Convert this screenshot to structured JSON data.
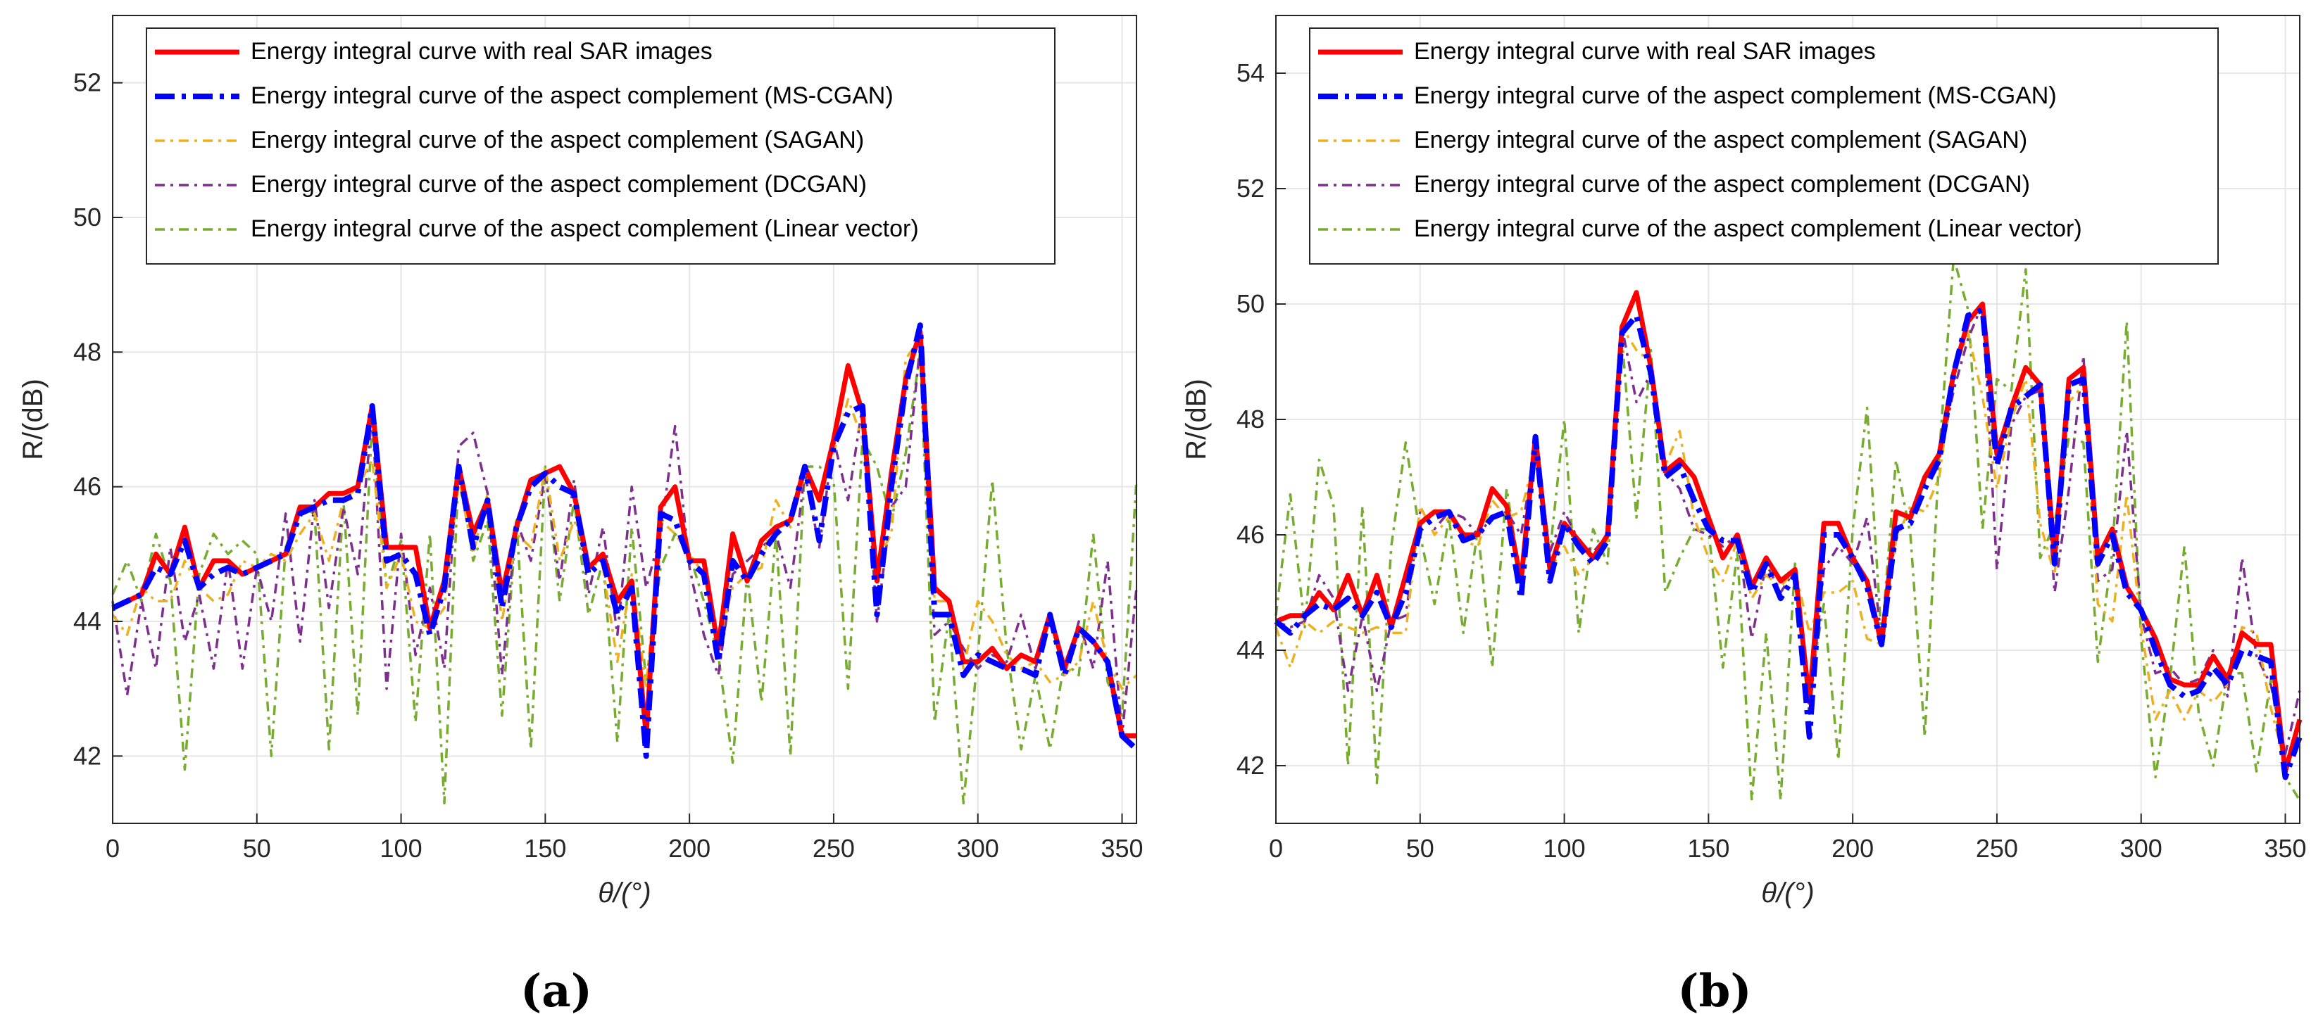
{
  "colors": {
    "real": "#ff0000",
    "mscgan": "#0000ff",
    "sagan": "#edb120",
    "dcgan": "#7e2f8e",
    "linear": "#77ac30",
    "grid": "#e6e6e6",
    "axis": "#262626"
  },
  "chart_data": [
    {
      "type": "line",
      "panel_label": "(a)",
      "xlabel": "θ/(°)",
      "ylabel": "R/(dB)",
      "xlim": [
        0,
        355
      ],
      "ylim": [
        41,
        53
      ],
      "xticks": [
        0,
        50,
        100,
        150,
        200,
        250,
        300,
        350
      ],
      "yticks": [
        42,
        44,
        46,
        48,
        50,
        52
      ],
      "grid": true,
      "legend_position": "top-left",
      "x": [
        0,
        5,
        10,
        15,
        20,
        25,
        30,
        35,
        40,
        45,
        50,
        55,
        60,
        65,
        70,
        75,
        80,
        85,
        90,
        95,
        100,
        105,
        110,
        115,
        120,
        125,
        130,
        135,
        140,
        145,
        150,
        155,
        160,
        165,
        170,
        175,
        180,
        185,
        190,
        195,
        200,
        205,
        210,
        215,
        220,
        225,
        230,
        235,
        240,
        245,
        250,
        255,
        260,
        265,
        270,
        275,
        280,
        285,
        290,
        295,
        300,
        305,
        310,
        315,
        320,
        325,
        330,
        335,
        340,
        345,
        350,
        355
      ],
      "series": [
        {
          "name": "Energy integral curve with real SAR images",
          "key": "real",
          "values": [
            44.2,
            44.3,
            44.4,
            45.0,
            44.7,
            45.4,
            44.5,
            44.9,
            44.9,
            44.7,
            44.8,
            44.9,
            45.0,
            45.7,
            45.7,
            45.9,
            45.9,
            46.0,
            47.2,
            45.1,
            45.1,
            45.1,
            43.9,
            44.6,
            46.3,
            45.3,
            45.8,
            44.4,
            45.4,
            46.1,
            46.2,
            46.3,
            45.9,
            44.8,
            45.0,
            44.3,
            44.6,
            42.3,
            45.7,
            46.0,
            44.9,
            44.9,
            43.6,
            45.3,
            44.6,
            45.2,
            45.4,
            45.5,
            46.3,
            45.8,
            46.7,
            47.8,
            47.1,
            44.6,
            46.2,
            47.6,
            48.3,
            44.5,
            44.3,
            43.4,
            43.4,
            43.6,
            43.3,
            43.5,
            43.4,
            44.1,
            43.3,
            43.9,
            43.7,
            43.4,
            42.3,
            42.3
          ]
        },
        {
          "name": "Energy integral curve of the aspect complement (MS-CGAN)",
          "key": "mscgan",
          "values": [
            44.2,
            44.3,
            44.4,
            44.8,
            44.7,
            45.2,
            44.5,
            44.7,
            44.8,
            44.7,
            44.8,
            44.9,
            45.0,
            45.6,
            45.7,
            45.8,
            45.8,
            45.9,
            47.2,
            44.9,
            45.0,
            44.7,
            43.8,
            44.5,
            46.3,
            45.1,
            45.8,
            44.2,
            45.4,
            46.0,
            46.2,
            46.0,
            45.9,
            44.7,
            44.9,
            44.1,
            44.5,
            42.0,
            45.6,
            45.5,
            44.9,
            44.7,
            43.4,
            44.9,
            44.6,
            45.0,
            45.3,
            45.5,
            46.3,
            45.2,
            46.6,
            47.1,
            47.2,
            44.1,
            46.0,
            47.5,
            48.4,
            44.1,
            44.1,
            43.2,
            43.5,
            43.4,
            43.3,
            43.3,
            43.2,
            44.1,
            43.2,
            43.9,
            43.7,
            43.4,
            42.3,
            42.1
          ]
        },
        {
          "name": "Energy integral curve of the aspect complement (SAGAN)",
          "key": "sagan",
          "values": [
            44.1,
            43.8,
            44.5,
            44.3,
            44.3,
            44.9,
            44.5,
            44.3,
            44.4,
            44.9,
            44.8,
            45.0,
            44.9,
            45.3,
            45.6,
            44.9,
            45.8,
            46.0,
            46.4,
            44.5,
            45.0,
            44.0,
            43.9,
            44.2,
            46.1,
            45.0,
            45.9,
            44.0,
            45.3,
            45.1,
            46.3,
            44.9,
            45.5,
            44.9,
            44.8,
            43.4,
            44.7,
            43.0,
            45.5,
            45.3,
            45.0,
            44.7,
            43.7,
            44.5,
            44.7,
            44.8,
            45.8,
            45.4,
            46.2,
            45.8,
            46.5,
            47.3,
            46.7,
            44.9,
            45.3,
            47.9,
            48.2,
            44.3,
            44.3,
            43.3,
            44.3,
            44.0,
            43.5,
            43.3,
            43.4,
            43.1,
            43.2,
            43.4,
            44.3,
            43.4,
            43.0,
            43.2
          ]
        },
        {
          "name": "Energy integral curve of the aspect complement (DCGAN)",
          "key": "dcgan",
          "values": [
            44.3,
            42.9,
            44.3,
            43.3,
            45.1,
            43.7,
            44.4,
            43.3,
            44.9,
            43.3,
            44.8,
            44.0,
            45.6,
            43.7,
            45.8,
            44.2,
            45.7,
            44.7,
            47.1,
            43.0,
            45.3,
            43.5,
            44.5,
            43.3,
            46.6,
            46.8,
            45.9,
            43.2,
            45.5,
            44.9,
            46.2,
            44.6,
            46.1,
            44.4,
            45.4,
            43.8,
            46.0,
            44.5,
            45.3,
            46.9,
            44.8,
            43.8,
            43.2,
            44.7,
            44.9,
            45.1,
            45.3,
            44.5,
            46.2,
            45.1,
            46.7,
            45.8,
            47.2,
            44.0,
            45.7,
            46.0,
            48.1,
            43.8,
            44.0,
            43.6,
            43.3,
            43.5,
            43.4,
            44.1,
            43.3,
            44.1,
            43.2,
            44.0,
            43.3,
            44.9,
            42.3,
            44.5
          ]
        },
        {
          "name": "Energy integral curve of the aspect complement (Linear vector)",
          "key": "linear",
          "values": [
            44.4,
            44.9,
            44.3,
            45.3,
            44.6,
            41.8,
            44.7,
            45.3,
            45.0,
            45.2,
            45.0,
            42.0,
            45.1,
            45.7,
            45.6,
            42.1,
            45.8,
            42.6,
            47.0,
            44.5,
            45.2,
            42.5,
            45.3,
            41.3,
            46.3,
            44.9,
            45.5,
            42.6,
            45.5,
            42.1,
            46.3,
            44.3,
            45.8,
            44.1,
            44.9,
            42.2,
            45.4,
            43.1,
            44.8,
            45.3,
            45.0,
            44.3,
            43.5,
            41.9,
            44.7,
            42.8,
            45.3,
            42.0,
            46.3,
            46.3,
            46.1,
            43.0,
            46.7,
            46.3,
            45.5,
            46.5,
            48.0,
            42.5,
            44.1,
            41.3,
            43.5,
            46.1,
            43.6,
            42.1,
            43.2,
            42.1,
            43.4,
            43.2,
            45.3,
            43.1,
            42.6,
            46.1
          ]
        }
      ]
    },
    {
      "type": "line",
      "panel_label": "(b)",
      "xlabel": "θ/(°)",
      "ylabel": "R/(dB)",
      "xlim": [
        0,
        355
      ],
      "ylim": [
        41,
        55
      ],
      "xticks": [
        0,
        50,
        100,
        150,
        200,
        250,
        300,
        350
      ],
      "yticks": [
        42,
        44,
        46,
        48,
        50,
        52,
        54
      ],
      "grid": true,
      "legend_position": "top-left",
      "x": [
        0,
        5,
        10,
        15,
        20,
        25,
        30,
        35,
        40,
        45,
        50,
        55,
        60,
        65,
        70,
        75,
        80,
        85,
        90,
        95,
        100,
        105,
        110,
        115,
        120,
        125,
        130,
        135,
        140,
        145,
        150,
        155,
        160,
        165,
        170,
        175,
        180,
        185,
        190,
        195,
        200,
        205,
        210,
        215,
        220,
        225,
        230,
        235,
        240,
        245,
        250,
        255,
        260,
        265,
        270,
        275,
        280,
        285,
        290,
        295,
        300,
        305,
        310,
        315,
        320,
        325,
        330,
        335,
        340,
        345,
        350,
        355
      ],
      "series": [
        {
          "name": "Energy integral curve with real SAR images",
          "key": "real",
          "values": [
            44.5,
            44.6,
            44.6,
            45.0,
            44.7,
            45.3,
            44.6,
            45.3,
            44.4,
            45.3,
            46.2,
            46.4,
            46.4,
            46.0,
            46.0,
            46.8,
            46.5,
            45.2,
            47.7,
            45.4,
            46.2,
            45.9,
            45.6,
            46.0,
            49.6,
            50.2,
            48.9,
            47.1,
            47.3,
            47.0,
            46.3,
            45.6,
            46.0,
            45.1,
            45.6,
            45.2,
            45.4,
            43.1,
            46.2,
            46.2,
            45.6,
            45.2,
            44.1,
            46.4,
            46.3,
            47.0,
            47.4,
            48.8,
            49.7,
            50.0,
            47.4,
            48.2,
            48.9,
            48.6,
            45.6,
            48.7,
            48.9,
            45.6,
            46.1,
            45.1,
            44.7,
            44.2,
            43.5,
            43.4,
            43.4,
            43.9,
            43.5,
            44.3,
            44.1,
            44.1,
            41.9,
            42.8
          ]
        },
        {
          "name": "Energy integral curve of the aspect complement (MS-CGAN)",
          "key": "mscgan",
          "values": [
            44.5,
            44.3,
            44.6,
            44.8,
            44.7,
            44.9,
            44.6,
            45.0,
            44.4,
            45.0,
            46.1,
            46.3,
            46.4,
            45.9,
            46.0,
            46.3,
            46.4,
            44.9,
            47.7,
            45.2,
            46.2,
            45.8,
            45.5,
            45.9,
            49.5,
            49.8,
            48.8,
            47.0,
            47.2,
            46.6,
            46.1,
            45.9,
            45.9,
            45.0,
            45.5,
            44.9,
            45.3,
            42.5,
            46.0,
            46.0,
            45.6,
            45.1,
            44.1,
            46.1,
            46.2,
            46.8,
            47.3,
            48.8,
            49.8,
            49.9,
            47.2,
            48.2,
            48.4,
            48.6,
            45.5,
            48.6,
            48.7,
            45.5,
            46.0,
            45.0,
            44.7,
            44.0,
            43.4,
            43.2,
            43.3,
            43.7,
            43.4,
            44.0,
            43.9,
            43.8,
            41.8,
            42.5
          ]
        },
        {
          "name": "Energy integral curve of the aspect complement (SAGAN)",
          "key": "sagan",
          "values": [
            44.4,
            43.7,
            44.5,
            44.3,
            44.5,
            44.4,
            44.3,
            44.4,
            44.3,
            44.3,
            46.5,
            46.0,
            46.3,
            45.9,
            45.8,
            46.6,
            46.3,
            46.4,
            47.4,
            45.4,
            45.8,
            45.3,
            45.6,
            45.9,
            49.6,
            49.2,
            49.0,
            47.2,
            47.8,
            46.3,
            45.6,
            45.2,
            45.9,
            44.9,
            45.3,
            45.1,
            45.4,
            44.3,
            45.0,
            45.0,
            45.2,
            44.2,
            44.1,
            45.9,
            46.5,
            46.4,
            47.0,
            48.8,
            49.5,
            48.4,
            46.8,
            48.0,
            48.7,
            46.2,
            45.3,
            48.3,
            48.6,
            44.8,
            44.5,
            46.7,
            44.4,
            42.8,
            43.3,
            42.8,
            43.3,
            43.1,
            43.4,
            44.4,
            44.3,
            43.0,
            42.0,
            42.7
          ]
        },
        {
          "name": "Energy integral curve of the aspect complement (DCGAN)",
          "key": "dcgan",
          "values": [
            44.5,
            44.4,
            44.5,
            45.3,
            44.9,
            43.3,
            44.6,
            43.3,
            44.5,
            44.6,
            46.4,
            46.1,
            46.4,
            46.3,
            46.0,
            46.3,
            46.4,
            46.0,
            47.5,
            45.7,
            46.4,
            45.9,
            45.7,
            46.0,
            49.6,
            48.3,
            48.8,
            47.1,
            46.8,
            46.1,
            46.0,
            45.8,
            46.0,
            44.2,
            45.5,
            45.0,
            45.4,
            42.9,
            45.4,
            45.8,
            45.5,
            46.3,
            44.2,
            46.0,
            46.4,
            46.9,
            47.3,
            48.5,
            49.4,
            50.0,
            45.4,
            47.9,
            48.4,
            48.5,
            45.0,
            46.8,
            49.1,
            45.2,
            45.4,
            47.8,
            44.6,
            43.6,
            43.7,
            43.4,
            43.5,
            44.0,
            43.2,
            45.6,
            43.9,
            43.4,
            42.2,
            43.3
          ]
        },
        {
          "name": "Energy integral curve of the aspect complement (Linear vector)",
          "key": "linear",
          "values": [
            44.6,
            46.7,
            44.4,
            47.3,
            46.5,
            42.0,
            46.5,
            41.7,
            45.8,
            47.6,
            46.0,
            44.8,
            46.3,
            44.3,
            46.1,
            43.7,
            46.8,
            45.2,
            47.7,
            45.7,
            48.0,
            44.3,
            46.1,
            45.5,
            49.4,
            46.3,
            49.2,
            45.0,
            45.6,
            46.1,
            46.1,
            43.7,
            45.7,
            41.4,
            44.3,
            41.4,
            45.5,
            43.3,
            44.8,
            42.1,
            46.1,
            48.2,
            44.2,
            47.3,
            46.0,
            42.5,
            47.4,
            50.8,
            49.9,
            46.1,
            48.7,
            48.5,
            50.6,
            45.6,
            46.2,
            47.7,
            47.6,
            43.8,
            45.7,
            49.7,
            44.2,
            41.8,
            43.5,
            45.8,
            42.9,
            42.0,
            43.6,
            43.6,
            41.9,
            43.5,
            41.8,
            41.4
          ]
        }
      ]
    }
  ]
}
